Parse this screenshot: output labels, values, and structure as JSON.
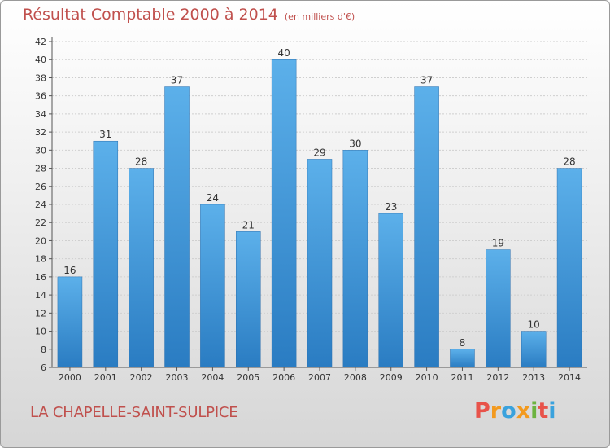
{
  "header": {
    "title": "Résultat Comptable 2000 à 2014",
    "unit": "(en milliers d'€)"
  },
  "footer": {
    "commune": "LA CHAPELLE-SAINT-SULPICE",
    "logo": "Proxiti"
  },
  "colors": {
    "bar": "#4a9ee0",
    "bar_dark": "#2f7fc4",
    "title": "#c0504d",
    "logo": [
      "#e8534a",
      "#f39a1e",
      "#3aa2dd",
      "#f39a1e",
      "#6cb33f",
      "#e8534a",
      "#3aa2dd"
    ]
  },
  "chart_data": {
    "type": "bar",
    "title": "Résultat Comptable 2000 à 2014",
    "subtitle": "(en milliers d'€)",
    "categories": [
      "2000",
      "2001",
      "2002",
      "2003",
      "2004",
      "2005",
      "2006",
      "2007",
      "2008",
      "2009",
      "2010",
      "2011",
      "2012",
      "2013",
      "2014"
    ],
    "values": [
      16,
      31,
      28,
      37,
      24,
      21,
      40,
      29,
      30,
      23,
      37,
      8,
      19,
      10,
      28
    ],
    "ylim": [
      6,
      42
    ],
    "yticks": [
      6,
      8,
      10,
      12,
      14,
      16,
      18,
      20,
      22,
      24,
      26,
      28,
      30,
      32,
      34,
      36,
      38,
      40,
      42
    ],
    "grid": true
  }
}
